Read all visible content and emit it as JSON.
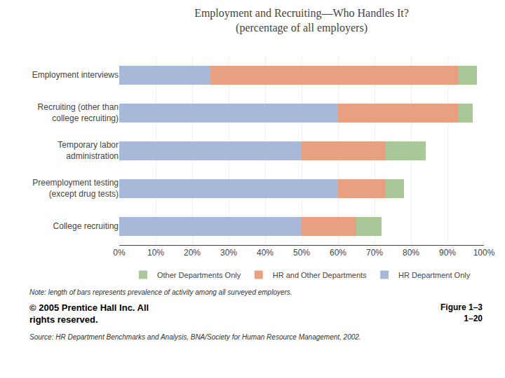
{
  "chart_data": {
    "type": "bar",
    "orientation": "horizontal",
    "stacked": true,
    "title": "Employment and Recruiting—Who Handles It?\n(percentage of all employers)",
    "categories": [
      "Employment interviews",
      "Recruiting (other than\ncollege recruiting)",
      "Temporary labor\nadministration",
      "Preemployment testing\n(except drug tests)",
      "College recruiting"
    ],
    "series": [
      {
        "name": "HR Department Only",
        "color": "#a8b8d8",
        "values": [
          25,
          60,
          50,
          60,
          50
        ]
      },
      {
        "name": "HR and Other Departments",
        "color": "#e8a080",
        "values": [
          68,
          33,
          23,
          13,
          15
        ]
      },
      {
        "name": "Other Departments Only",
        "color": "#a8c898",
        "values": [
          5,
          4,
          11,
          5,
          7
        ]
      }
    ],
    "xlim": [
      0,
      100
    ],
    "xticks": [
      {
        "value": 0,
        "label": "0%"
      },
      {
        "value": 10,
        "label": "10%"
      },
      {
        "value": 20,
        "label": "20%"
      },
      {
        "value": 30,
        "label": "30%"
      },
      {
        "value": 40,
        "label": "40%"
      },
      {
        "value": 50,
        "label": "50%"
      },
      {
        "value": 60,
        "label": "60%"
      },
      {
        "value": 70,
        "label": "70%"
      },
      {
        "value": 80,
        "label": "80%"
      },
      {
        "value": 90,
        "label": "90%"
      },
      {
        "value": 100,
        "label": "100%"
      }
    ],
    "grid": true,
    "legend": "bottom",
    "annotations": [
      "Note: length of bars represents prevalence of activity among all surveyed employers.",
      "© 2005 Prentice Hall Inc. All\nrights reserved.",
      "Source: HR Department Benchmarks and Analysis, BNA/Society for Human Resource Management, 2002.",
      "Figure 1–3\n1–20"
    ]
  }
}
